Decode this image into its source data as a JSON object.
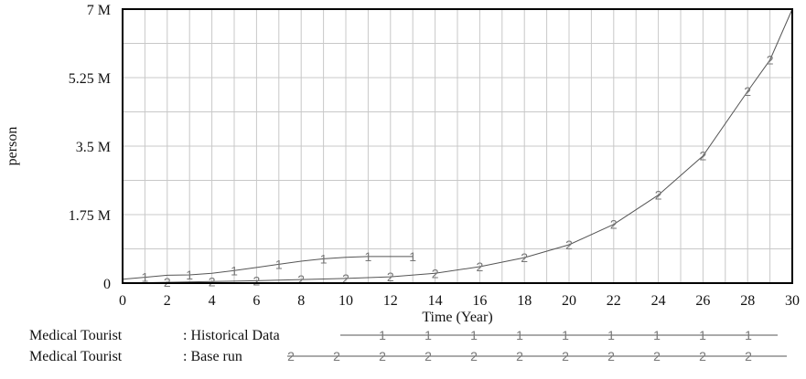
{
  "chart_data": {
    "type": "line",
    "title": "",
    "xlabel": "Time (Year)",
    "ylabel": "person",
    "xlim": [
      0,
      30
    ],
    "ylim": [
      0,
      7000000
    ],
    "x_ticks": [
      "0",
      "2",
      "4",
      "6",
      "8",
      "10",
      "12",
      "14",
      "16",
      "18",
      "20",
      "22",
      "24",
      "26",
      "28",
      "30"
    ],
    "y_ticks": [
      {
        "value": 0,
        "label": "0"
      },
      {
        "value": 1750000,
        "label": "1.75 M"
      },
      {
        "value": 3500000,
        "label": "3.5 M"
      },
      {
        "value": 5250000,
        "label": "5.25 M"
      },
      {
        "value": 7000000,
        "label": "7 M"
      }
    ],
    "grid": true,
    "legend_position": "bottom",
    "series": [
      {
        "name": "Medical Tourist : Historical Data",
        "legend_var": "Medical Tourist",
        "legend_run": ": Historical Data",
        "marker": "1",
        "color": "#555555",
        "points": [
          [
            0,
            100000
          ],
          [
            1,
            150000
          ],
          [
            2,
            200000
          ],
          [
            3,
            210000
          ],
          [
            4,
            250000
          ],
          [
            5,
            320000
          ],
          [
            6,
            400000
          ],
          [
            7,
            480000
          ],
          [
            8,
            560000
          ],
          [
            9,
            620000
          ],
          [
            10,
            660000
          ],
          [
            11,
            680000
          ],
          [
            12,
            680000
          ],
          [
            13,
            680000
          ]
        ]
      },
      {
        "name": "Medical Tourist : Base run",
        "legend_var": "Medical Tourist",
        "legend_run": ": Base run",
        "marker": "2",
        "color": "#555555",
        "points": [
          [
            0,
            0
          ],
          [
            2,
            20000
          ],
          [
            4,
            40000
          ],
          [
            6,
            60000
          ],
          [
            8,
            90000
          ],
          [
            10,
            120000
          ],
          [
            12,
            160000
          ],
          [
            14,
            250000
          ],
          [
            16,
            420000
          ],
          [
            18,
            650000
          ],
          [
            20,
            980000
          ],
          [
            22,
            1500000
          ],
          [
            24,
            2250000
          ],
          [
            26,
            3250000
          ],
          [
            28,
            4900000
          ],
          [
            29,
            5700000
          ],
          [
            30,
            7000000
          ]
        ]
      }
    ]
  }
}
